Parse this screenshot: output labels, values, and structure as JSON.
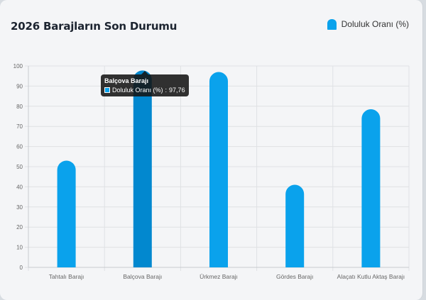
{
  "title": "2026 Barajların Son Durumu",
  "legend": {
    "label": "Doluluk Oranı (%)"
  },
  "colors": {
    "bar": "#0aa2ec",
    "bar_active": "#0288cf",
    "grid": "#dfe1e4",
    "axis": "#666"
  },
  "tooltip": {
    "title": "Balçova Barajı",
    "series_label": "Doluluk Oranı (%)",
    "value_text": "97,76"
  },
  "chart_data": {
    "type": "bar",
    "categories": [
      "Tahtalı Barajı",
      "Balçova Barajı",
      "Ürkmez Barajı",
      "Gördes Barajı",
      "Alaçatı Kutlu Aktaş Barajı"
    ],
    "series": [
      {
        "name": "Doluluk Oranı (%)",
        "values": [
          53,
          97.76,
          97,
          41,
          78.5
        ]
      }
    ],
    "ylim": [
      0,
      100
    ],
    "yticks": [
      0,
      10,
      20,
      30,
      40,
      50,
      60,
      70,
      80,
      90,
      100
    ],
    "active_index": 1,
    "grid": true,
    "legend_position": "top-right",
    "title": "2026 Barajların Son Durumu"
  }
}
